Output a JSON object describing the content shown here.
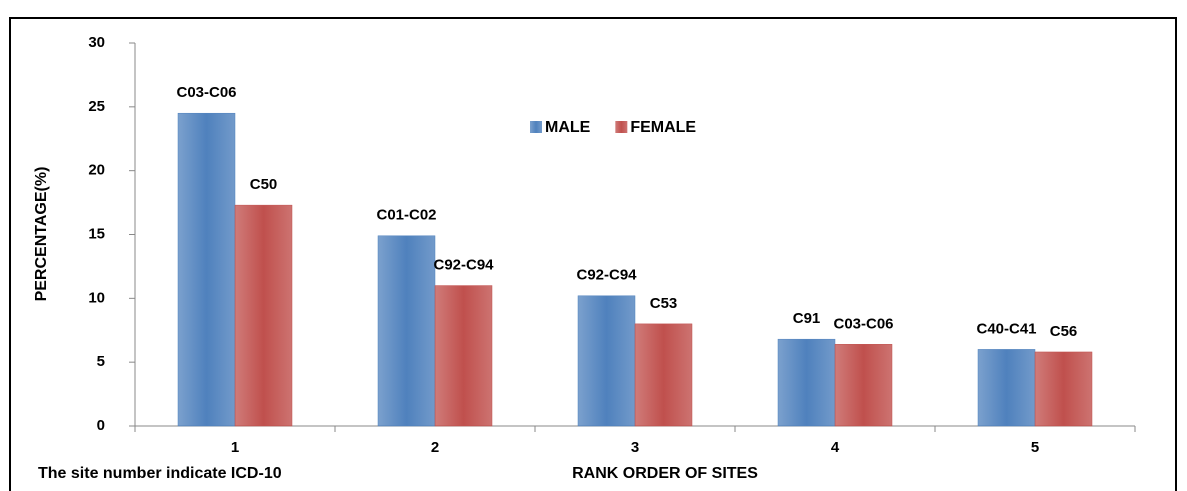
{
  "chart_data": {
    "type": "bar",
    "categories": [
      "1",
      "2",
      "3",
      "4",
      "5"
    ],
    "series": [
      {
        "name": "MALE",
        "color": "#4f81bd",
        "values": [
          24.5,
          14.9,
          10.2,
          6.8,
          6.0
        ],
        "bar_labels": [
          "C03-C06",
          "C01-C02",
          "C92-C94",
          "C91",
          "C40-C41"
        ]
      },
      {
        "name": "FEMALE",
        "color": "#c0504d",
        "values": [
          17.3,
          11.0,
          8.0,
          6.4,
          5.8
        ],
        "bar_labels": [
          "C50",
          "C92-C94",
          "C53",
          "C03-C06",
          "C56"
        ]
      }
    ],
    "ylim": [
      0,
      30
    ],
    "yticks": [
      0,
      5,
      10,
      15,
      20,
      25,
      30
    ],
    "y_label": "PERCENTAGE(%)",
    "x_label": "RANK ORDER OF SITES",
    "annotation": "The site number indicate ICD-10",
    "legend": "top-center"
  }
}
